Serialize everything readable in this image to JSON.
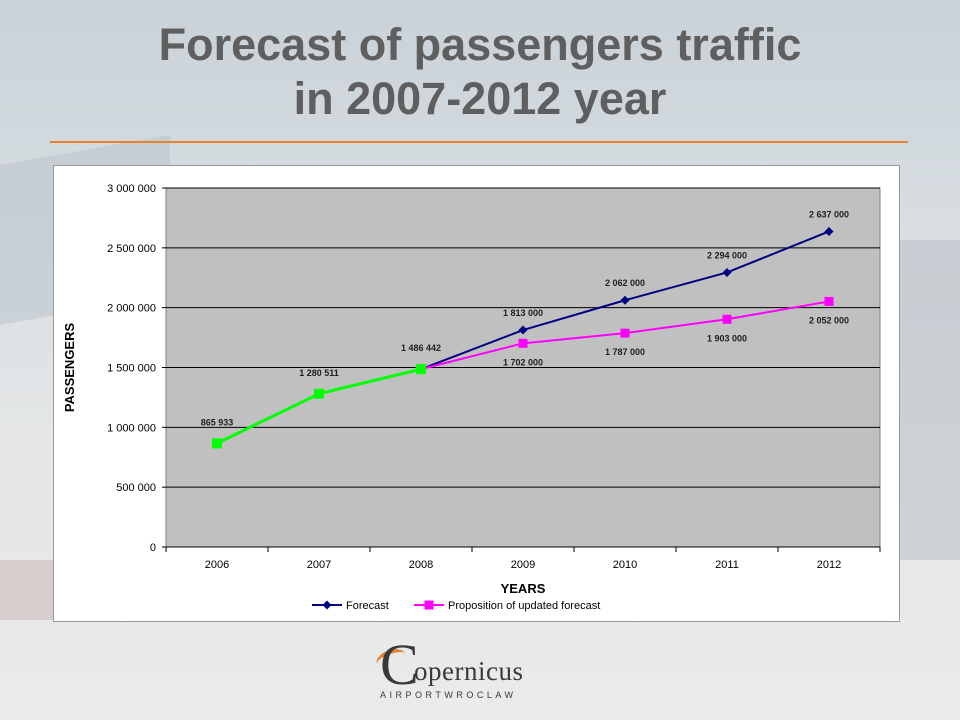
{
  "slide": {
    "title_line1": "Forecast of passengers traffic",
    "title_line2": "in 2007-2012 year"
  },
  "logo": {
    "initial": "C",
    "name": "opernicus",
    "sub_a": "AIRPORT",
    "sub_b": "WROCLAW"
  },
  "colors": {
    "title": "#5f5f5f",
    "rule": "#e8822f",
    "plot_bg": "#c0c0c0",
    "forecast": "#000080",
    "updated": "#ff00ff",
    "historic": "#00ff00"
  },
  "chart_data": {
    "type": "line",
    "xlabel": "YEARS",
    "ylabel": "PASSENGERS",
    "categories": [
      "2006",
      "2007",
      "2008",
      "2009",
      "2010",
      "2011",
      "2012"
    ],
    "ylim": [
      0,
      3000000
    ],
    "yticks": [
      0,
      500000,
      1000000,
      1500000,
      2000000,
      2500000,
      3000000
    ],
    "ytick_labels": [
      "0",
      "500 000",
      "1 000 000",
      "1 500 000",
      "2 000 000",
      "2 500 000",
      "3 000 000"
    ],
    "grid": "horizontal",
    "legend_position": "bottom",
    "series": [
      {
        "name": "Forecast",
        "color": "#000080",
        "marker": "diamond",
        "values": [
          865933,
          1280511,
          1486442,
          1813000,
          2062000,
          2294000,
          2637000
        ],
        "labels": [
          "",
          "",
          "",
          "1 813 000",
          "2 062 000",
          "2 294 000",
          "2 637 000"
        ]
      },
      {
        "name": "Proposition of updated forecast",
        "color": "#ff00ff",
        "marker": "square",
        "values": [
          865933,
          1280511,
          1486442,
          1702000,
          1787000,
          1903000,
          2052000
        ],
        "labels": [
          "",
          "",
          "",
          "1 702 000",
          "1 787 000",
          "1 903 000",
          "2 052 000"
        ]
      }
    ],
    "historic": {
      "color": "#00ff00",
      "values": [
        865933,
        1280511,
        1486442
      ],
      "labels": [
        "865 933",
        "1 280 511",
        "1 486 442"
      ]
    }
  }
}
